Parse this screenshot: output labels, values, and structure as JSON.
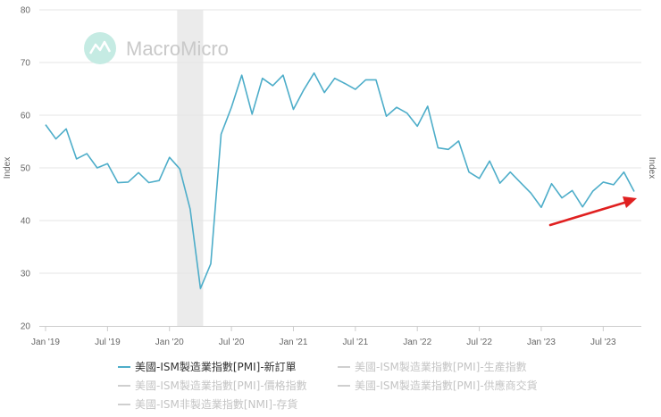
{
  "watermark": {
    "text": "MacroMicro"
  },
  "chart_data": {
    "type": "line",
    "y_axis": {
      "title": "Index",
      "ticks": [
        "20",
        "30",
        "40",
        "50",
        "60",
        "70",
        "80"
      ],
      "ylim": [
        20,
        80
      ]
    },
    "y_axis_right": {
      "title": "Index"
    },
    "x_axis": {
      "ticks": [
        {
          "label": "Jan '19",
          "date": "2019-01"
        },
        {
          "label": "Jul '19",
          "date": "2019-07"
        },
        {
          "label": "Jan '20",
          "date": "2020-01"
        },
        {
          "label": "Jul '20",
          "date": "2020-07"
        },
        {
          "label": "Jan '21",
          "date": "2021-01"
        },
        {
          "label": "Jul '21",
          "date": "2021-07"
        },
        {
          "label": "Jan '22",
          "date": "2022-01"
        },
        {
          "label": "Jul '22",
          "date": "2022-07"
        },
        {
          "label": "Jan '23",
          "date": "2023-01"
        },
        {
          "label": "Jul '23",
          "date": "2023-07"
        }
      ],
      "range": [
        "2019-01",
        "2023-10"
      ]
    },
    "recession_band": {
      "start": "2020-02",
      "end": "2020-04"
    },
    "grid": true,
    "series": [
      {
        "name": "美國-ISM製造業指數[PMI]-新訂單",
        "color": "#4dadc9",
        "points": [
          [
            "2019-01",
            58.2
          ],
          [
            "2019-02",
            55.5
          ],
          [
            "2019-03",
            57.4
          ],
          [
            "2019-04",
            51.7
          ],
          [
            "2019-05",
            52.7
          ],
          [
            "2019-06",
            50.0
          ],
          [
            "2019-07",
            50.8
          ],
          [
            "2019-08",
            47.2
          ],
          [
            "2019-09",
            47.3
          ],
          [
            "2019-10",
            49.1
          ],
          [
            "2019-11",
            47.2
          ],
          [
            "2019-12",
            47.6
          ],
          [
            "2020-01",
            52.0
          ],
          [
            "2020-02",
            49.8
          ],
          [
            "2020-03",
            42.2
          ],
          [
            "2020-04",
            27.1
          ],
          [
            "2020-05",
            31.8
          ],
          [
            "2020-06",
            56.4
          ],
          [
            "2020-07",
            61.5
          ],
          [
            "2020-08",
            67.6
          ],
          [
            "2020-09",
            60.2
          ],
          [
            "2020-10",
            67.0
          ],
          [
            "2020-11",
            65.6
          ],
          [
            "2020-12",
            67.6
          ],
          [
            "2021-01",
            61.1
          ],
          [
            "2021-02",
            64.8
          ],
          [
            "2021-03",
            68.0
          ],
          [
            "2021-04",
            64.3
          ],
          [
            "2021-05",
            67.0
          ],
          [
            "2021-06",
            66.0
          ],
          [
            "2021-07",
            64.9
          ],
          [
            "2021-08",
            66.7
          ],
          [
            "2021-09",
            66.7
          ],
          [
            "2021-10",
            59.8
          ],
          [
            "2021-11",
            61.5
          ],
          [
            "2021-12",
            60.4
          ],
          [
            "2022-01",
            57.9
          ],
          [
            "2022-02",
            61.7
          ],
          [
            "2022-03",
            53.8
          ],
          [
            "2022-04",
            53.5
          ],
          [
            "2022-05",
            55.1
          ],
          [
            "2022-06",
            49.2
          ],
          [
            "2022-07",
            48.0
          ],
          [
            "2022-08",
            51.3
          ],
          [
            "2022-09",
            47.1
          ],
          [
            "2022-10",
            49.2
          ],
          [
            "2022-11",
            47.2
          ],
          [
            "2022-12",
            45.2
          ],
          [
            "2023-01",
            42.5
          ],
          [
            "2023-02",
            47.0
          ],
          [
            "2023-03",
            44.3
          ],
          [
            "2023-04",
            45.7
          ],
          [
            "2023-05",
            42.6
          ],
          [
            "2023-06",
            45.6
          ],
          [
            "2023-07",
            47.3
          ],
          [
            "2023-08",
            46.8
          ],
          [
            "2023-09",
            49.2
          ],
          [
            "2023-10",
            45.5
          ]
        ]
      }
    ],
    "annotation": {
      "type": "arrow",
      "color": "#e02020"
    }
  },
  "legend": [
    {
      "label": "美國-ISM製造業指數[PMI]-新訂單",
      "active": true,
      "color": "#4dadc9"
    },
    {
      "label": "美國-ISM製造業指數[PMI]-生產指數",
      "active": false,
      "color": "#cfcfcf"
    },
    {
      "label": "美國-ISM製造業指數[PMI]-價格指數",
      "active": false,
      "color": "#cfcfcf"
    },
    {
      "label": "美國-ISM製造業指數[PMI]-供應商交貨",
      "active": false,
      "color": "#cfcfcf"
    },
    {
      "label": "美國-ISM非製造業指數[NMI]-存貨",
      "active": false,
      "color": "#cfcfcf"
    }
  ]
}
